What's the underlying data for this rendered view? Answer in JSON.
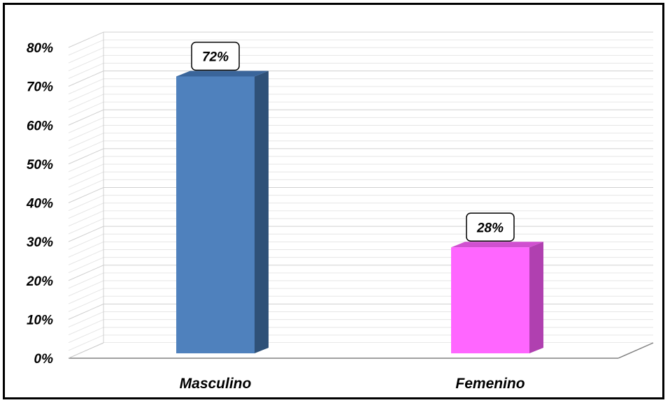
{
  "chart_data": {
    "type": "bar",
    "categories": [
      "Masculino",
      "Femenino"
    ],
    "values": [
      72,
      28
    ],
    "data_labels": [
      "72%",
      "28%"
    ],
    "yticks": [
      0,
      10,
      20,
      30,
      40,
      50,
      60,
      70,
      80
    ],
    "ytick_labels": [
      "0%",
      "10%",
      "20%",
      "30%",
      "40%",
      "50%",
      "60%",
      "70%",
      "80%"
    ],
    "ylim": [
      0,
      80
    ],
    "title": "",
    "xlabel": "",
    "ylabel": "",
    "grid": true,
    "style": "3d-column",
    "colors": {
      "Masculino": {
        "front": "#4f81bd",
        "side": "#2f5178",
        "top": "#3a659a"
      },
      "Femenino": {
        "front": "#ff66ff",
        "side": "#b040b0",
        "top": "#d050d0"
      },
      "grid": "#d9d9d9",
      "floor": "#808080"
    }
  }
}
